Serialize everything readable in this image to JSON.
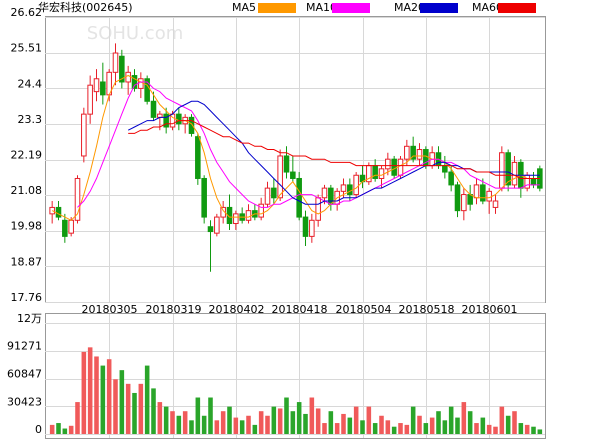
{
  "chart_data": {
    "type": "candlestick",
    "title": "华宏科技(002645)",
    "watermark": "SOHU.com",
    "categories": [
      null,
      null,
      null,
      null,
      null,
      null,
      null,
      null,
      null,
      "20180305",
      null,
      null,
      null,
      null,
      null,
      null,
      null,
      null,
      null,
      "20180319",
      null,
      null,
      null,
      null,
      null,
      null,
      null,
      null,
      null,
      "20180402",
      null,
      null,
      null,
      null,
      null,
      null,
      null,
      null,
      null,
      "20180418",
      null,
      null,
      null,
      null,
      null,
      null,
      null,
      null,
      null,
      "20180504",
      null,
      null,
      null,
      null,
      null,
      null,
      null,
      null,
      null,
      "20180518",
      null,
      null,
      null,
      null,
      null,
      null,
      null,
      null,
      null,
      "20180601",
      null,
      null,
      null,
      null,
      null,
      null,
      null,
      null
    ],
    "open": [
      20.5,
      20.7,
      20.3,
      19.9,
      20.3,
      22.3,
      23.6,
      24.3,
      24.6,
      24.2,
      24.9,
      25.4,
      24.6,
      24.8,
      24.4,
      24.7,
      24.0,
      23.5,
      23.6,
      23.2,
      23.6,
      23.3,
      23.5,
      22.9,
      21.6,
      20.1,
      19.9,
      20.4,
      20.7,
      20.2,
      20.5,
      20.3,
      20.6,
      20.4,
      20.8,
      21.3,
      21.0,
      22.3,
      21.8,
      21.6,
      20.4,
      19.8,
      20.3,
      21.0,
      21.3,
      20.8,
      21.2,
      21.4,
      21.1,
      21.7,
      21.5,
      22.0,
      21.6,
      21.9,
      22.2,
      21.7,
      22.2,
      22.6,
      22.2,
      22.5,
      22.0,
      22.4,
      22.0,
      21.8,
      21.4,
      20.6,
      21.1,
      21.0,
      21.4,
      20.9,
      20.7,
      21.3,
      22.4,
      21.4,
      22.1,
      21.3,
      21.6,
      21.9
    ],
    "high": [
      20.9,
      20.9,
      20.5,
      20.4,
      21.7,
      23.8,
      24.8,
      25.0,
      25.2,
      25.0,
      25.8,
      25.6,
      25.1,
      25.0,
      24.9,
      24.8,
      24.3,
      23.7,
      23.8,
      23.7,
      23.8,
      23.6,
      23.6,
      23.0,
      21.7,
      20.3,
      20.5,
      20.9,
      21.1,
      20.6,
      20.7,
      20.8,
      20.8,
      21.0,
      21.5,
      21.6,
      22.5,
      22.6,
      22.3,
      21.8,
      20.6,
      20.5,
      21.1,
      21.4,
      21.4,
      21.3,
      21.6,
      21.6,
      21.8,
      22.0,
      22.1,
      22.2,
      22.0,
      22.4,
      22.3,
      22.3,
      22.8,
      22.9,
      22.7,
      22.6,
      22.6,
      22.6,
      22.3,
      22.0,
      21.5,
      21.3,
      21.4,
      21.6,
      21.6,
      21.3,
      21.1,
      22.6,
      22.5,
      22.3,
      22.2,
      21.8,
      21.8,
      22.0
    ],
    "low": [
      20.2,
      20.3,
      19.6,
      19.8,
      20.2,
      22.1,
      23.3,
      24.0,
      23.9,
      24.0,
      24.5,
      24.4,
      24.2,
      24.3,
      24.1,
      23.9,
      23.4,
      23.1,
      23.0,
      23.1,
      23.1,
      23.0,
      22.9,
      21.4,
      20.2,
      18.7,
      19.8,
      20.2,
      20.0,
      20.0,
      20.2,
      20.2,
      20.3,
      20.3,
      20.7,
      20.8,
      20.9,
      21.6,
      21.5,
      20.3,
      19.5,
      19.6,
      20.1,
      20.8,
      20.6,
      20.6,
      21.0,
      20.9,
      21.0,
      21.3,
      21.4,
      21.5,
      21.3,
      21.7,
      21.6,
      21.6,
      22.0,
      22.1,
      22.0,
      21.9,
      21.9,
      21.9,
      21.6,
      21.2,
      20.4,
      20.3,
      20.6,
      20.8,
      20.8,
      20.5,
      20.5,
      21.2,
      21.2,
      21.3,
      21.0,
      21.2,
      21.3,
      21.2
    ],
    "close": [
      20.7,
      20.4,
      19.8,
      20.3,
      21.6,
      23.6,
      24.5,
      24.7,
      24.2,
      24.9,
      25.5,
      24.6,
      24.9,
      24.4,
      24.7,
      24.0,
      23.5,
      23.6,
      23.2,
      23.6,
      23.3,
      23.5,
      23.0,
      21.6,
      20.4,
      19.95,
      20.4,
      20.7,
      20.2,
      20.5,
      20.3,
      20.6,
      20.4,
      20.8,
      21.3,
      21.0,
      22.3,
      21.8,
      21.6,
      20.4,
      19.8,
      20.3,
      21.0,
      21.3,
      20.8,
      21.2,
      21.4,
      21.1,
      21.7,
      21.5,
      22.0,
      21.6,
      21.9,
      22.2,
      21.7,
      22.2,
      22.6,
      22.2,
      22.5,
      22.0,
      22.4,
      22.0,
      21.8,
      21.4,
      20.6,
      21.1,
      20.8,
      21.4,
      20.9,
      21.2,
      20.9,
      22.4,
      21.4,
      22.1,
      21.3,
      21.7,
      21.4,
      21.3
    ],
    "up_color": "#e8202a",
    "down_color": "#109a10",
    "ylim": [
      17.76,
      26.62
    ],
    "yticks": [
      17.76,
      18.87,
      19.98,
      21.08,
      22.19,
      23.3,
      24.4,
      25.51,
      26.62
    ],
    "grid": true,
    "lines": [
      {
        "name": "MA5",
        "color": "#ff9900",
        "values": [
          20.6,
          20.5,
          20.4,
          20.3,
          20.5,
          21.1,
          21.8,
          22.6,
          23.5,
          24.2,
          24.6,
          24.7,
          24.8,
          24.7,
          24.6,
          24.5,
          24.2,
          23.9,
          23.7,
          23.5,
          23.4,
          23.4,
          23.3,
          23.0,
          22.4,
          21.6,
          21.0,
          20.6,
          20.4,
          20.4,
          20.4,
          20.4,
          20.5,
          20.5,
          20.6,
          20.8,
          21.1,
          21.3,
          21.5,
          21.2,
          20.9,
          20.6,
          20.5,
          20.6,
          20.8,
          21.0,
          21.1,
          21.2,
          21.3,
          21.5,
          21.6,
          21.7,
          21.7,
          21.8,
          21.9,
          22.0,
          22.1,
          22.3,
          22.3,
          22.3,
          22.2,
          22.2,
          22.1,
          21.9,
          21.6,
          21.3,
          21.1,
          21.0,
          21.0,
          21.0,
          21.1,
          21.3,
          21.5,
          21.6,
          21.7,
          21.6,
          21.6,
          21.6
        ]
      },
      {
        "name": "MA10",
        "color": "#ff00ff",
        "values": [
          null,
          null,
          null,
          null,
          20.7,
          20.9,
          21.2,
          21.6,
          22.1,
          22.6,
          23.1,
          23.6,
          24.1,
          24.5,
          24.6,
          24.6,
          24.4,
          24.3,
          24.1,
          24.0,
          23.9,
          23.8,
          23.7,
          23.4,
          23.0,
          22.5,
          22.1,
          21.8,
          21.5,
          21.3,
          21.1,
          20.9,
          20.8,
          20.7,
          20.7,
          20.8,
          20.8,
          20.9,
          21.0,
          21.1,
          21.1,
          21.1,
          21.0,
          20.9,
          20.8,
          20.8,
          20.9,
          20.9,
          21.0,
          21.1,
          21.2,
          21.3,
          21.4,
          21.5,
          21.6,
          21.7,
          21.8,
          21.9,
          22.0,
          22.1,
          22.2,
          22.2,
          22.1,
          22.1,
          22.0,
          21.9,
          21.7,
          21.6,
          21.5,
          21.4,
          21.3,
          21.3,
          21.3,
          21.3,
          21.3,
          21.4,
          21.4,
          21.4
        ]
      },
      {
        "name": "MA20",
        "color": "#0000cc",
        "values": [
          null,
          null,
          null,
          null,
          null,
          null,
          null,
          null,
          null,
          null,
          null,
          null,
          23.1,
          23.2,
          23.3,
          23.4,
          23.4,
          23.5,
          23.5,
          23.6,
          23.8,
          23.9,
          24.0,
          24.0,
          23.9,
          23.7,
          23.5,
          23.3,
          23.1,
          22.9,
          22.7,
          22.4,
          22.2,
          22.0,
          21.8,
          21.6,
          21.4,
          21.2,
          21.0,
          20.9,
          20.8,
          20.8,
          20.8,
          20.9,
          20.9,
          20.9,
          21.0,
          21.0,
          21.0,
          21.1,
          21.2,
          21.3,
          21.3,
          21.4,
          21.5,
          21.6,
          21.7,
          21.8,
          21.9,
          22.0,
          22.0,
          22.1,
          22.1,
          22.0,
          22.0,
          21.9,
          21.9,
          21.8,
          21.8,
          21.8,
          21.8,
          21.8,
          21.8,
          21.7,
          21.7,
          21.7,
          21.7,
          21.7
        ]
      },
      {
        "name": "MA60",
        "color": "#ee0000",
        "values": [
          null,
          null,
          null,
          null,
          null,
          null,
          null,
          null,
          null,
          null,
          null,
          null,
          23.0,
          23.0,
          23.1,
          23.1,
          23.2,
          23.2,
          23.3,
          23.3,
          23.4,
          23.4,
          23.4,
          23.3,
          23.2,
          23.1,
          23.0,
          22.9,
          22.9,
          22.8,
          22.7,
          22.7,
          22.6,
          22.6,
          22.5,
          22.5,
          22.4,
          22.4,
          22.3,
          22.3,
          22.3,
          22.2,
          22.2,
          22.2,
          22.1,
          22.1,
          22.1,
          22.1,
          22.0,
          22.0,
          22.0,
          22.0,
          22.0,
          22.0,
          22.0,
          22.0,
          22.0,
          22.0,
          22.0,
          22.0,
          22.0,
          22.0,
          22.0,
          22.0,
          21.9,
          21.9,
          21.9,
          21.8,
          21.8,
          21.8,
          21.7,
          21.7,
          21.7,
          21.7,
          21.6,
          21.6,
          21.6,
          21.6
        ]
      }
    ],
    "volume": {
      "values": [
        10000,
        12000,
        6000,
        9000,
        35000,
        90000,
        95000,
        85000,
        75000,
        82000,
        60000,
        70000,
        55000,
        45000,
        55000,
        75000,
        50000,
        35000,
        30000,
        25000,
        20000,
        25000,
        15000,
        40000,
        20000,
        40000,
        15000,
        25000,
        30000,
        18000,
        15000,
        20000,
        10000,
        25000,
        20000,
        30000,
        28000,
        40000,
        25000,
        35000,
        22000,
        40000,
        28000,
        12000,
        25000,
        12000,
        22000,
        18000,
        30000,
        15000,
        30000,
        12000,
        20000,
        15000,
        8000,
        12000,
        10000,
        30000,
        20000,
        12000,
        18000,
        25000,
        15000,
        30000,
        18000,
        35000,
        25000,
        12000,
        18000,
        10000,
        8000,
        30000,
        20000,
        25000,
        12000,
        10000,
        8000,
        5000
      ],
      "ylim": [
        0,
        121694
      ],
      "yticks": [
        0,
        30423,
        60847,
        91271,
        {
          "value": 121694,
          "label": "12万"
        }
      ]
    }
  }
}
